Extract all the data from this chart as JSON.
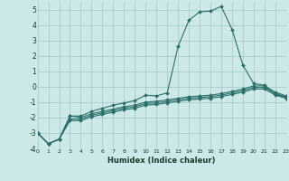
{
  "xlabel": "Humidex (Indice chaleur)",
  "background_color": "#cce8e8",
  "grid_color": "#aacccc",
  "line_color": "#2a7068",
  "xlim": [
    0,
    23
  ],
  "ylim": [
    -4,
    5.5
  ],
  "yticks": [
    -4,
    -3,
    -2,
    -1,
    0,
    1,
    2,
    3,
    4,
    5
  ],
  "xticks": [
    0,
    1,
    2,
    3,
    4,
    5,
    6,
    7,
    8,
    9,
    10,
    11,
    12,
    13,
    14,
    15,
    16,
    17,
    18,
    19,
    20,
    21,
    22,
    23
  ],
  "x": [
    0,
    1,
    2,
    3,
    4,
    5,
    6,
    7,
    8,
    9,
    10,
    11,
    12,
    13,
    14,
    15,
    16,
    17,
    18,
    19,
    20,
    21,
    22,
    23
  ],
  "line1": [
    -3.0,
    -3.7,
    -3.4,
    -1.9,
    -1.9,
    -1.6,
    -1.4,
    -1.2,
    -1.05,
    -0.9,
    -0.55,
    -0.6,
    -0.4,
    2.6,
    4.3,
    4.85,
    4.9,
    5.2,
    3.7,
    1.4,
    0.2,
    0.1,
    -0.5,
    -0.7
  ],
  "line2": [
    -3.0,
    -3.7,
    -3.4,
    -1.9,
    -2.0,
    -1.75,
    -1.6,
    -1.45,
    -1.3,
    -1.2,
    -1.0,
    -0.95,
    -0.85,
    -0.75,
    -0.65,
    -0.6,
    -0.55,
    -0.45,
    -0.3,
    -0.15,
    0.05,
    0.05,
    -0.35,
    -0.6
  ],
  "line3": [
    -3.0,
    -3.7,
    -3.4,
    -2.1,
    -2.1,
    -1.85,
    -1.7,
    -1.55,
    -1.4,
    -1.3,
    -1.1,
    -1.05,
    -0.95,
    -0.85,
    -0.75,
    -0.7,
    -0.65,
    -0.55,
    -0.4,
    -0.25,
    -0.05,
    -0.05,
    -0.45,
    -0.65
  ],
  "line4": [
    -3.0,
    -3.7,
    -3.4,
    -2.2,
    -2.2,
    -1.95,
    -1.8,
    -1.65,
    -1.5,
    -1.4,
    -1.2,
    -1.15,
    -1.05,
    -0.95,
    -0.85,
    -0.8,
    -0.75,
    -0.65,
    -0.5,
    -0.35,
    -0.15,
    -0.15,
    -0.55,
    -0.75
  ]
}
